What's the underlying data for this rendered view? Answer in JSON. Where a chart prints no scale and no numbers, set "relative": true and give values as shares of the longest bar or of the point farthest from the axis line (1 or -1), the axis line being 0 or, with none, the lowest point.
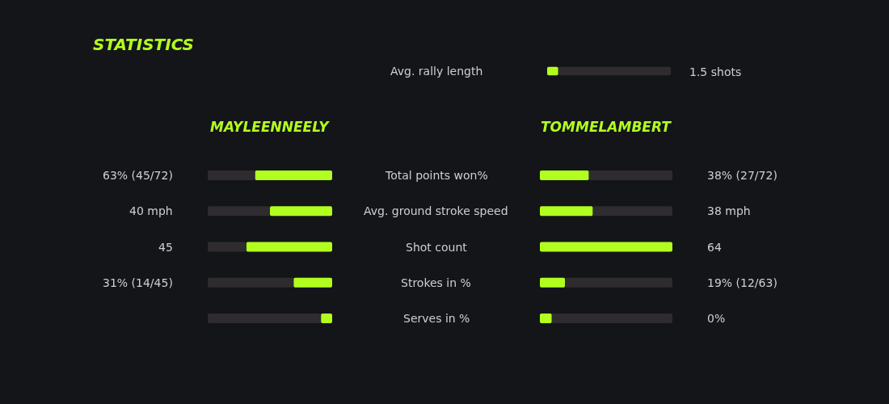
{
  "chart_data": [
    {
      "type": "bar",
      "orientation": "horizontal",
      "stacked": true,
      "relative": true,
      "categories": [
        "Avg. rally length"
      ],
      "series": [
        {
          "color": "#b2ff1f",
          "values": [
            0.09
          ]
        },
        {
          "color": "#2e2c2e",
          "values": [
            0.91
          ]
        }
      ],
      "annotations": [
        "1.5 shots"
      ]
    },
    {
      "type": "bar",
      "orientation": "horizontal",
      "stacked": true,
      "relative": true,
      "title": "STATISTICS",
      "categories": [
        null,
        null,
        null,
        null,
        null
      ],
      "series": [
        {
          "name": "MAYLEENNEELY",
          "color": "#b2ff1f",
          "values": [
            -0.62,
            -0.5,
            -0.69,
            -0.31,
            -0.09
          ]
        },
        {
          "color": "#2e2c2e",
          "values": [
            -0.38,
            -0.5,
            -0.31,
            -0.69,
            -0.91
          ]
        }
      ],
      "annotations": [
        "63% (45/72)",
        "40 mph",
        "45",
        "31% (14/45)"
      ]
    },
    {
      "type": "bar",
      "orientation": "horizontal",
      "stacked": true,
      "relative": true,
      "categories": [
        "Total points won%",
        "Avg. ground stroke speed",
        "Shot count",
        "Strokes in %",
        "Serves in %"
      ],
      "series": [
        {
          "name": "TOMMELAMBERT",
          "color": "#b2ff1f",
          "values": [
            0.37,
            0.4,
            1,
            0.19,
            0.09
          ]
        },
        {
          "color": "#2e2c2e",
          "values": [
            0.63,
            0.6,
            0,
            0.81,
            0.91
          ]
        }
      ],
      "annotations": [
        "38% (27/72)",
        "38 mph",
        "64",
        "19% (12/63)",
        "0%"
      ]
    }
  ]
}
